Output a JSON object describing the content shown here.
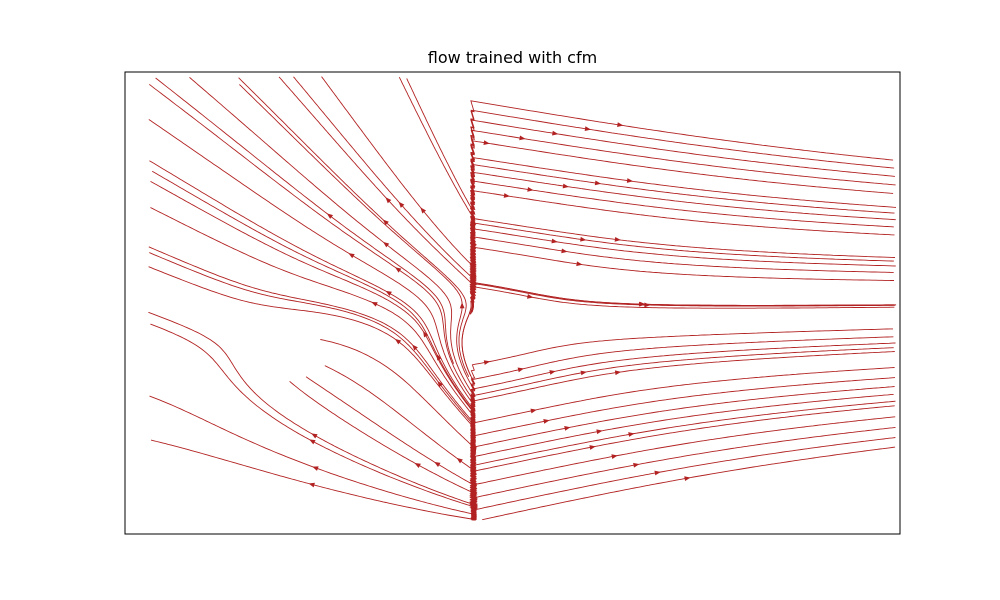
{
  "chart_data": {
    "type": "streamplot",
    "title": "flow trained with cfm",
    "xlabel": "",
    "ylabel": "",
    "ticks_visible": false,
    "grid": false,
    "legend": "none",
    "line_color": "#b22222",
    "field": {
      "sinks": [
        {
          "x": 0.2,
          "y": 0.39
        },
        {
          "x": 0.5,
          "y": 0.45
        }
      ],
      "outward_drift": "left half flows up-left, right half flows right / down-right"
    }
  }
}
